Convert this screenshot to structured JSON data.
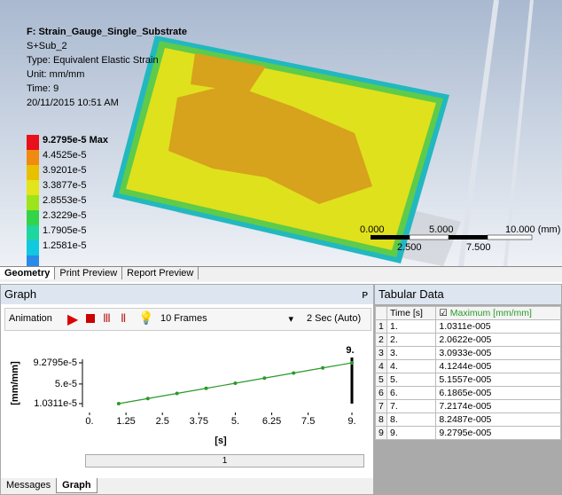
{
  "viewport": {
    "title": "F: Strain_Gauge_Single_Substrate",
    "details": [
      "S+Sub_2",
      "Type: Equivalent Elastic Strain",
      "Unit: mm/mm",
      "Time: 9",
      "20/11/2015 10:51 AM"
    ],
    "legend": {
      "max_label": "9.2795e-5 Max",
      "levels": [
        "4.4525e-5",
        "3.9201e-5",
        "3.3877e-5",
        "2.8553e-5",
        "2.3229e-5",
        "1.7905e-5",
        "1.2581e-5"
      ]
    },
    "scale": {
      "top": [
        "0.000",
        "5.000",
        "10.000 (mm)"
      ],
      "bottom": [
        "2.500",
        "7.500"
      ]
    }
  },
  "view_tabs": [
    "Geometry",
    "Print Preview",
    "Report Preview"
  ],
  "graph": {
    "title": "Graph",
    "toolbar": {
      "animation": "Animation",
      "frames": "10 Frames",
      "duration": "2 Sec (Auto)"
    },
    "chart": {
      "type": "line",
      "y_label": "[mm/mm]",
      "x_label": "[s]",
      "x": [
        1,
        2,
        3,
        4,
        5,
        6,
        7,
        8,
        9
      ],
      "y": [
        1.0311e-05,
        2.0622e-05,
        3.0933e-05,
        4.1244e-05,
        5.1557e-05,
        6.1865e-05,
        7.2174e-05,
        8.2487e-05,
        9.2795e-05
      ],
      "color": "#2a9a2a",
      "xlim": [
        0,
        9
      ],
      "ylim": [
        1.0311e-05,
        9.2795e-05
      ],
      "xticks": [
        {
          "value": 0,
          "label": "0."
        },
        1.25,
        2.5,
        3.75,
        {
          "value": 5,
          "label": "5."
        },
        6.25,
        7.5,
        {
          "value": 9,
          "label": "9."
        }
      ],
      "yticks": [
        {
          "value": 9.2795e-05,
          "label": "9.2795e-5"
        },
        {
          "value": 5e-05,
          "label": "5.e-5"
        },
        {
          "value": 1.0311e-05,
          "label": "1.0311e-5"
        }
      ],
      "cursor_label": "9.",
      "slider": "1"
    }
  },
  "tabular": {
    "title": "Tabular Data",
    "headers": [
      "Time [s]",
      "Maximum [mm/mm]"
    ],
    "rows": [
      [
        "1.",
        "1.0311e-005"
      ],
      [
        "2.",
        "2.0622e-005"
      ],
      [
        "3.",
        "3.0933e-005"
      ],
      [
        "4.",
        "4.1244e-005"
      ],
      [
        "5.",
        "5.1557e-005"
      ],
      [
        "6.",
        "6.1865e-005"
      ],
      [
        "7.",
        "7.2174e-005"
      ],
      [
        "8.",
        "8.2487e-005"
      ],
      [
        "9.",
        "9.2795e-005"
      ]
    ]
  },
  "bottom_tabs": [
    "Messages",
    "Graph"
  ]
}
